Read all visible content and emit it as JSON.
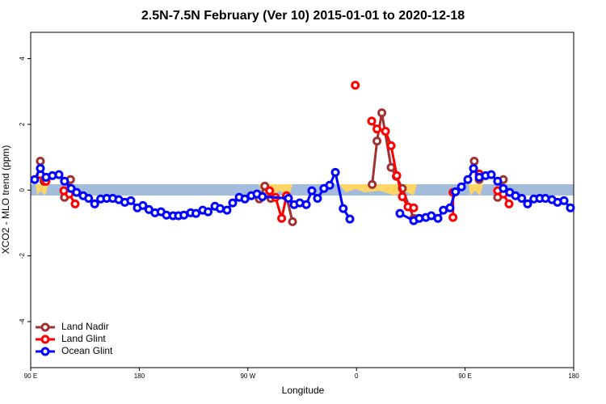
{
  "chart_data": {
    "type": "line",
    "title": "2.5N-7.5N February (Ver 10)   2015-01-01 to 2020-12-18",
    "x_label": "Longitude",
    "y_label": "XCO2 - MLO trend (ppm)",
    "xlim": [
      90,
      540
    ],
    "ylim": [
      -5.4,
      4.8
    ],
    "xticks": [
      {
        "value": 90,
        "label": "90 E"
      },
      180,
      {
        "value": 270,
        "label": "90 W"
      },
      {
        "value": 360,
        "label": "0"
      },
      {
        "value": 450,
        "label": "90 E"
      },
      {
        "value": 540,
        "label": "180"
      }
    ],
    "yticks": [
      -4,
      -2,
      0,
      2,
      4
    ],
    "legend": "bottom-left",
    "series": [
      {
        "name": "Land Nadir",
        "color": "#a03232",
        "x": [
          98,
          101,
          null,
          118,
          123,
          null,
          279.5,
          284,
          289,
          null,
          302,
          307,
          null,
          373,
          377,
          381,
          388.7,
          393,
          398,
          407.4,
          null,
          457.6,
          461.7,
          null,
          477,
          481.7
        ],
        "values": [
          0.88,
          0.27,
          null,
          -0.22,
          0.32,
          null,
          -0.27,
          0.12,
          -0.25,
          null,
          -0.2,
          -0.96,
          null,
          0.17,
          1.49,
          2.35,
          0.69,
          0.42,
          0.05,
          -0.86,
          null,
          0.88,
          0.32,
          null,
          -0.22,
          0.32
        ]
      },
      {
        "name": "Land Glint",
        "color": "#ff0000",
        "x": [
          98,
          102.7,
          null,
          117.5,
          122,
          126.8,
          null,
          288,
          292.9,
          298,
          302,
          null,
          359,
          null,
          372.6,
          377,
          384,
          388.7,
          393.4,
          398,
          402.7,
          407.4,
          null,
          440,
          440,
          null,
          461.7,
          null,
          477,
          481.7,
          486.4
        ],
        "values": [
          0.47,
          0.27,
          null,
          -0.02,
          -0.12,
          -0.42,
          null,
          -0.02,
          -0.22,
          -0.86,
          -0.17,
          null,
          3.19,
          null,
          2.1,
          1.86,
          1.79,
          1.35,
          0.44,
          -0.2,
          -0.51,
          -0.54,
          null,
          -0.07,
          -0.83,
          null,
          0.49,
          null,
          -0.02,
          -0.12,
          -0.42
        ]
      },
      {
        "name": "Ocean Glint",
        "color": "#0000ff",
        "x": [
          93.3,
          98,
          102.7,
          108,
          113.4,
          118,
          123.5,
          128,
          133.5,
          138,
          143,
          148,
          153,
          158,
          163,
          168,
          173,
          178.4,
          183,
          188,
          193,
          198,
          202.5,
          208,
          212.5,
          217,
          222.6,
          227,
          232.6,
          237,
          242.7,
          247,
          252.7,
          257.4,
          262.8,
          267.5,
          272.8,
          277.5,
          282,
          303.6,
          308.3,
          313,
          318.4,
          323,
          327.7,
          333,
          337.8,
          342.5,
          349,
          354.5,
          null,
          396,
          407.4,
          412,
          417.5,
          422,
          427.5,
          432,
          437.5,
          442,
          447,
          452.3,
          457,
          461.7,
          467,
          471.7,
          477,
          481.7,
          487,
          491.8,
          497,
          501.8,
          507,
          511.9,
          516.6,
          522,
          526.6,
          532,
          537.3
        ],
        "values": [
          0.32,
          0.66,
          0.39,
          0.44,
          0.47,
          0.27,
          0.05,
          -0.07,
          -0.17,
          -0.25,
          -0.42,
          -0.27,
          -0.25,
          -0.25,
          -0.29,
          -0.37,
          -0.32,
          -0.54,
          -0.47,
          -0.59,
          -0.69,
          -0.66,
          -0.76,
          -0.78,
          -0.78,
          -0.76,
          -0.69,
          -0.71,
          -0.61,
          -0.66,
          -0.49,
          -0.56,
          -0.61,
          -0.39,
          -0.22,
          -0.27,
          -0.17,
          -0.12,
          -0.2,
          -0.25,
          -0.44,
          -0.39,
          -0.44,
          -0.02,
          -0.25,
          0.05,
          0.15,
          0.54,
          -0.56,
          -0.88,
          null,
          -0.71,
          -0.93,
          -0.86,
          -0.83,
          -0.78,
          -0.86,
          -0.61,
          -0.54,
          -0.05,
          0.1,
          0.32,
          0.66,
          0.39,
          0.44,
          0.47,
          0.27,
          0.05,
          -0.07,
          -0.17,
          -0.25,
          -0.42,
          -0.27,
          -0.25,
          -0.25,
          -0.29,
          -0.37,
          -0.32,
          -0.54
        ]
      }
    ]
  }
}
